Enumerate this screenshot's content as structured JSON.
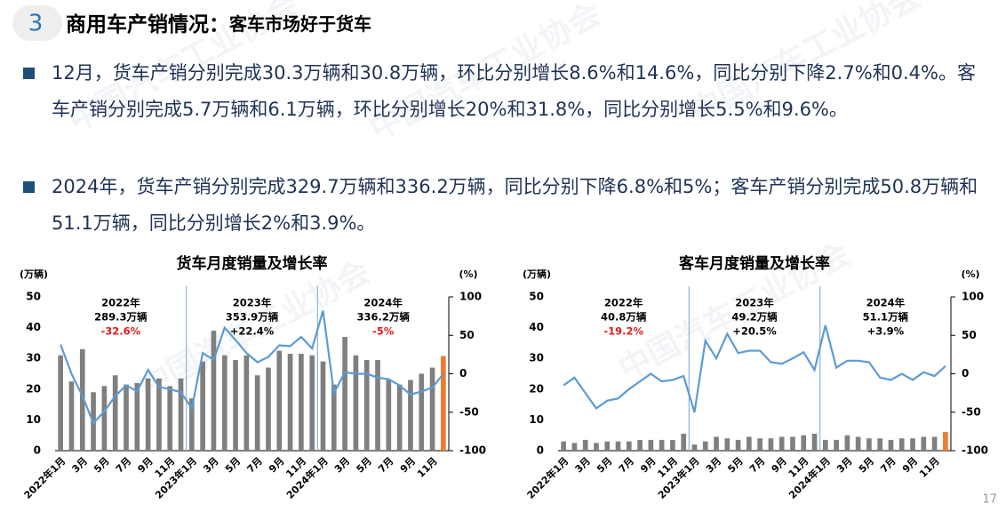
{
  "header": {
    "number": "3",
    "title": "商用车产销情况：",
    "subtitle": "客车市场好于货车"
  },
  "bullets": [
    "12月，货车产销分别完成30.3万辆和30.8万辆，环比分别增长8.6%和14.6%，同比分别下降2.7%和0.4%。客车产销分别完成5.7万辆和6.1万辆，环比分别增长20%和31.8%，同比分别增长5.5%和9.6%。",
    "2024年，货车产销分别完成329.7万辆和336.2万辆，同比分别下降6.8%和5%；客车产销分别完成50.8万辆和51.1万辆，同比分别增长2%和3.9%。"
  ],
  "watermark": "中国汽车工业协会",
  "page_number": "17",
  "chart_data": [
    {
      "type": "bar_line",
      "title": "货车月度销量及增长率",
      "y_label": "(万辆)",
      "y2_label": "(%)",
      "categories": [
        "2022年1月",
        null,
        "3月",
        null,
        "5月",
        null,
        "7月",
        null,
        "9月",
        null,
        "11月",
        null,
        "2023年1月",
        null,
        "3月",
        null,
        "5月",
        null,
        "7月",
        null,
        "9月",
        null,
        "11月",
        null,
        "2024年1月",
        null,
        "3月",
        null,
        "5月",
        null,
        "7月",
        null,
        "9月",
        null,
        "11月",
        null
      ],
      "series": [
        {
          "name": "销量",
          "values": [
            31,
            22.5,
            33,
            19,
            21,
            24.5,
            21.5,
            22,
            23.5,
            23.5,
            21,
            23.5,
            17,
            29,
            39,
            31,
            29.5,
            31,
            24.5,
            27,
            32.5,
            31.5,
            31.5,
            31,
            29,
            21.5,
            37,
            31,
            29.5,
            29.5,
            23,
            21.5,
            23,
            25,
            27,
            30.8
          ],
          "colors": [
            "#7f7f7f",
            "#7f7f7f",
            "#7f7f7f",
            "#7f7f7f",
            "#7f7f7f",
            "#7f7f7f",
            "#7f7f7f",
            "#7f7f7f",
            "#7f7f7f",
            "#7f7f7f",
            "#7f7f7f",
            "#7f7f7f",
            "#7f7f7f",
            "#7f7f7f",
            "#7f7f7f",
            "#7f7f7f",
            "#7f7f7f",
            "#7f7f7f",
            "#7f7f7f",
            "#7f7f7f",
            "#7f7f7f",
            "#7f7f7f",
            "#7f7f7f",
            "#7f7f7f",
            "#7f7f7f",
            "#7f7f7f",
            "#7f7f7f",
            "#7f7f7f",
            "#7f7f7f",
            "#7f7f7f",
            "#7f7f7f",
            "#7f7f7f",
            "#7f7f7f",
            "#7f7f7f",
            "#7f7f7f",
            "#ed7d31"
          ]
        },
        {
          "name": "增长率",
          "axis": "y2",
          "color": "#5b9bd5",
          "values": [
            38,
            0,
            -29,
            -64,
            -49,
            -29,
            -15,
            -23,
            5,
            -17,
            -20,
            -24,
            -45,
            27,
            18,
            60,
            44,
            27,
            15,
            22,
            37,
            36,
            48,
            33,
            82,
            -25,
            2,
            0,
            0,
            -5,
            -7,
            -15,
            -27,
            -23,
            -18,
            0
          ]
        }
      ],
      "ylim": [
        0,
        50
      ],
      "yticks": [
        0,
        10,
        20,
        30,
        40,
        50
      ],
      "y2lim": [
        -100,
        100
      ],
      "y2ticks": [
        -100,
        -50,
        0,
        50,
        100
      ],
      "annotations": [
        {
          "year": "2022年",
          "total": "289.3万辆",
          "growth": "-32.6%",
          "growth_color": "#e02020"
        },
        {
          "year": "2023年",
          "total": "353.9万辆",
          "growth": "+22.4%",
          "growth_color": "#000000"
        },
        {
          "year": "2024年",
          "total": "336.2万辆",
          "growth": "-5%",
          "growth_color": "#e02020"
        }
      ]
    },
    {
      "type": "bar_line",
      "title": "客车月度销量及增长率",
      "y_label": "(万辆)",
      "y2_label": "(%)",
      "categories": [
        "2022年1月",
        null,
        "3月",
        null,
        "5月",
        null,
        "7月",
        null,
        "9月",
        null,
        "11月",
        null,
        "2023年1月",
        null,
        "3月",
        null,
        "5月",
        null,
        "7月",
        null,
        "9月",
        null,
        "11月",
        null,
        "2024年1月",
        null,
        "3月",
        null,
        "5月",
        null,
        "7月",
        null,
        "9月",
        null,
        "11月",
        null
      ],
      "series": [
        {
          "name": "销量",
          "values": [
            3,
            2.5,
            3.5,
            2.5,
            3,
            3,
            3,
            3.5,
            3.5,
            3.5,
            3.5,
            5.5,
            2,
            3,
            4.5,
            4,
            3.5,
            4.5,
            4,
            4,
            4.5,
            4.5,
            5,
            5.5,
            3.5,
            3.5,
            5,
            4.5,
            4,
            4,
            3.5,
            4,
            4,
            4.5,
            4.5,
            6.1
          ],
          "colors": [
            "#7f7f7f",
            "#7f7f7f",
            "#7f7f7f",
            "#7f7f7f",
            "#7f7f7f",
            "#7f7f7f",
            "#7f7f7f",
            "#7f7f7f",
            "#7f7f7f",
            "#7f7f7f",
            "#7f7f7f",
            "#7f7f7f",
            "#7f7f7f",
            "#7f7f7f",
            "#7f7f7f",
            "#7f7f7f",
            "#7f7f7f",
            "#7f7f7f",
            "#7f7f7f",
            "#7f7f7f",
            "#7f7f7f",
            "#7f7f7f",
            "#7f7f7f",
            "#7f7f7f",
            "#7f7f7f",
            "#7f7f7f",
            "#7f7f7f",
            "#7f7f7f",
            "#7f7f7f",
            "#7f7f7f",
            "#7f7f7f",
            "#7f7f7f",
            "#7f7f7f",
            "#7f7f7f",
            "#7f7f7f",
            "#ed7d31"
          ]
        },
        {
          "name": "增长率",
          "axis": "y2",
          "color": "#5b9bd5",
          "values": [
            -15,
            -5,
            -25,
            -45,
            -35,
            -32,
            -20,
            -10,
            0,
            -10,
            -8,
            -3,
            -50,
            43,
            20,
            52,
            27,
            30,
            30,
            15,
            13,
            20,
            28,
            5,
            63,
            8,
            17,
            17,
            15,
            -5,
            -8,
            0,
            -8,
            2,
            -3,
            10
          ]
        }
      ],
      "ylim": [
        0,
        50
      ],
      "yticks": [
        0,
        10,
        20,
        30,
        40,
        50
      ],
      "y2lim": [
        -100,
        100
      ],
      "y2ticks": [
        -100,
        -50,
        0,
        50,
        100
      ],
      "annotations": [
        {
          "year": "2022年",
          "total": "40.8万辆",
          "growth": "-19.2%",
          "growth_color": "#e02020"
        },
        {
          "year": "2023年",
          "total": "49.2万辆",
          "growth": "+20.5%",
          "growth_color": "#000000"
        },
        {
          "year": "2024年",
          "total": "51.1万辆",
          "growth": "+3.9%",
          "growth_color": "#000000"
        }
      ]
    }
  ]
}
